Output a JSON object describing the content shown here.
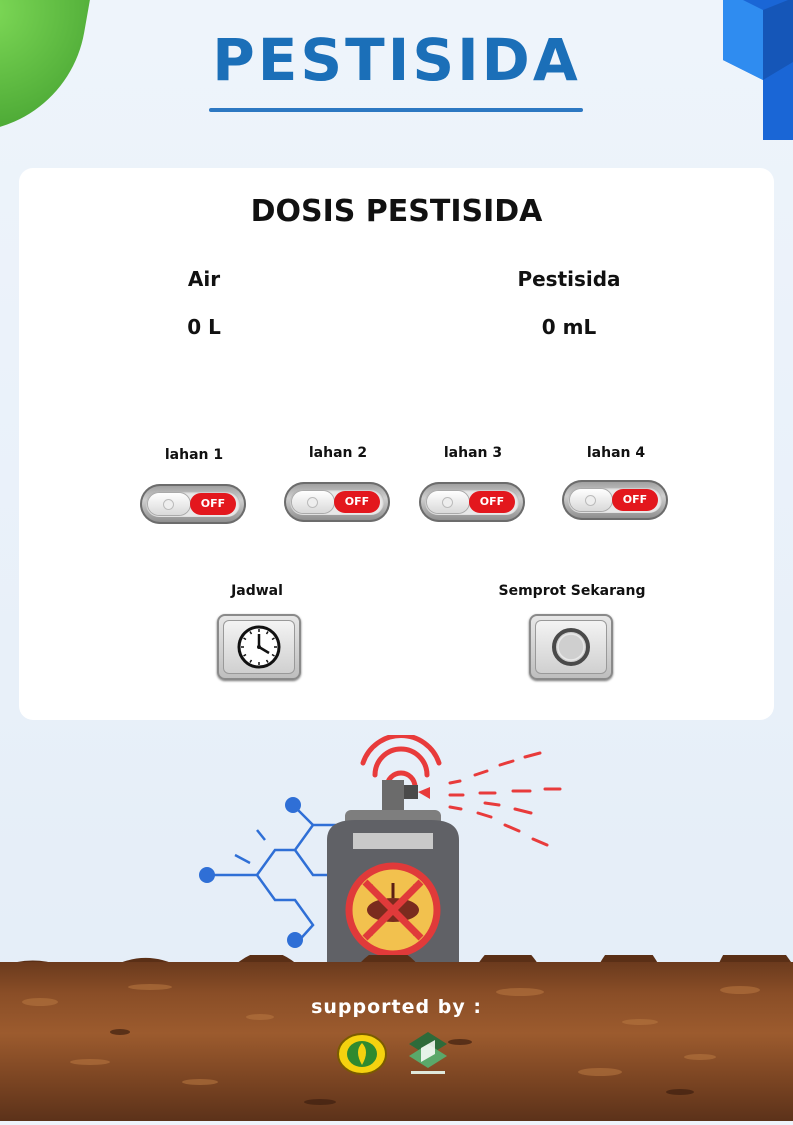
{
  "header": {
    "title": "PESTISIDA"
  },
  "card": {
    "title": "DOSIS PESTISIDA",
    "doses": [
      {
        "label": "Air",
        "value": "0 L"
      },
      {
        "label": "Pestisida",
        "value": "0 mL"
      }
    ],
    "lands": [
      {
        "label": "lahan 1",
        "state": "OFF"
      },
      {
        "label": "lahan 2",
        "state": "OFF"
      },
      {
        "label": "lahan 3",
        "state": "OFF"
      },
      {
        "label": "lahan 4",
        "state": "OFF"
      }
    ],
    "actions": {
      "schedule_label": "Jadwal",
      "spray_label": "Semprot Sekarang"
    }
  },
  "footer": {
    "supported_label": "supported by :"
  },
  "icons": {
    "schedule": "clock-icon",
    "spray": "circle-button-icon",
    "illustration": "pesticide-spray-can-icon"
  },
  "colors": {
    "title": "#1b6fb8",
    "toggle_off": "#e3171d",
    "spray_waves": "#e83b3b",
    "ground": "#8a4e27"
  }
}
